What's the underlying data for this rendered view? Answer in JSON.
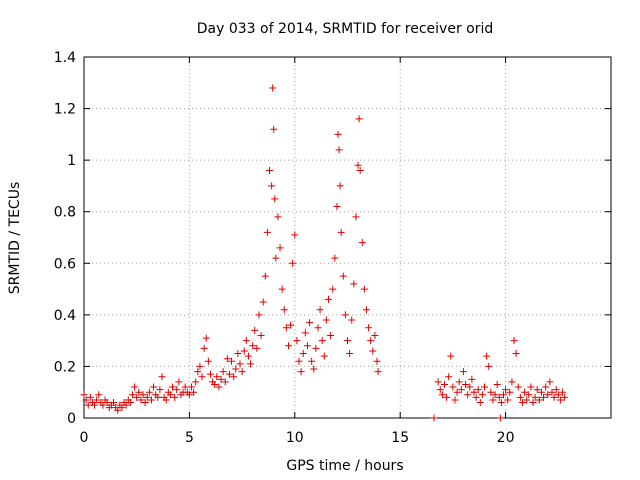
{
  "chart_data": {
    "type": "scatter",
    "title": "Day 033 of 2014, SRMTID for receiver orid",
    "xlabel": "GPS time / hours",
    "ylabel": "SRMTID / TECUs",
    "xlim": [
      0,
      25
    ],
    "ylim": [
      0,
      1.4
    ],
    "xticks": [
      "0",
      "5",
      "10",
      "15",
      "20"
    ],
    "yticks": [
      "0",
      "0.2",
      "0.4",
      "0.6",
      "0.8",
      "1",
      "1.2",
      "1.4"
    ],
    "grid": true,
    "legend": "none",
    "marker": "+",
    "color": "#e00000",
    "series": [
      {
        "name": "SRMTID",
        "points": [
          [
            0.0,
            0.09
          ],
          [
            0.1,
            0.07
          ],
          [
            0.2,
            0.05
          ],
          [
            0.3,
            0.08
          ],
          [
            0.4,
            0.06
          ],
          [
            0.5,
            0.05
          ],
          [
            0.6,
            0.07
          ],
          [
            0.7,
            0.09
          ],
          [
            0.8,
            0.06
          ],
          [
            0.9,
            0.05
          ],
          [
            1.0,
            0.07
          ],
          [
            1.1,
            0.06
          ],
          [
            1.2,
            0.04
          ],
          [
            1.3,
            0.05
          ],
          [
            1.4,
            0.06
          ],
          [
            1.5,
            0.04
          ],
          [
            1.6,
            0.03
          ],
          [
            1.7,
            0.05
          ],
          [
            1.8,
            0.04
          ],
          [
            1.9,
            0.06
          ],
          [
            2.0,
            0.05
          ],
          [
            2.1,
            0.07
          ],
          [
            2.2,
            0.06
          ],
          [
            2.3,
            0.09
          ],
          [
            2.4,
            0.12
          ],
          [
            2.5,
            0.08
          ],
          [
            2.6,
            0.1
          ],
          [
            2.7,
            0.07
          ],
          [
            2.8,
            0.09
          ],
          [
            2.9,
            0.06
          ],
          [
            3.0,
            0.08
          ],
          [
            3.1,
            0.1
          ],
          [
            3.2,
            0.07
          ],
          [
            3.3,
            0.12
          ],
          [
            3.4,
            0.09
          ],
          [
            3.5,
            0.08
          ],
          [
            3.6,
            0.11
          ],
          [
            3.7,
            0.16
          ],
          [
            3.8,
            0.08
          ],
          [
            3.9,
            0.07
          ],
          [
            4.0,
            0.1
          ],
          [
            4.1,
            0.09
          ],
          [
            4.2,
            0.12
          ],
          [
            4.3,
            0.08
          ],
          [
            4.4,
            0.11
          ],
          [
            4.5,
            0.14
          ],
          [
            4.6,
            0.09
          ],
          [
            4.7,
            0.1
          ],
          [
            4.8,
            0.12
          ],
          [
            4.9,
            0.1
          ],
          [
            5.0,
            0.09
          ],
          [
            5.1,
            0.12
          ],
          [
            5.2,
            0.1
          ],
          [
            5.3,
            0.14
          ],
          [
            5.4,
            0.18
          ],
          [
            5.5,
            0.2
          ],
          [
            5.6,
            0.16
          ],
          [
            5.7,
            0.27
          ],
          [
            5.8,
            0.31
          ],
          [
            5.9,
            0.22
          ],
          [
            6.0,
            0.17
          ],
          [
            6.1,
            0.14
          ],
          [
            6.2,
            0.13
          ],
          [
            6.3,
            0.16
          ],
          [
            6.4,
            0.12
          ],
          [
            6.5,
            0.15
          ],
          [
            6.6,
            0.18
          ],
          [
            6.7,
            0.14
          ],
          [
            6.8,
            0.23
          ],
          [
            6.9,
            0.17
          ],
          [
            7.0,
            0.22
          ],
          [
            7.1,
            0.16
          ],
          [
            7.2,
            0.19
          ],
          [
            7.3,
            0.25
          ],
          [
            7.4,
            0.21
          ],
          [
            7.5,
            0.18
          ],
          [
            7.6,
            0.26
          ],
          [
            7.7,
            0.3
          ],
          [
            7.8,
            0.24
          ],
          [
            7.9,
            0.21
          ],
          [
            8.0,
            0.28
          ],
          [
            8.1,
            0.34
          ],
          [
            8.2,
            0.27
          ],
          [
            8.3,
            0.4
          ],
          [
            8.4,
            0.32
          ],
          [
            8.5,
            0.45
          ],
          [
            8.6,
            0.55
          ],
          [
            8.7,
            0.72
          ],
          [
            8.8,
            0.96
          ],
          [
            8.9,
            0.9
          ],
          [
            8.95,
            1.28
          ],
          [
            9.0,
            1.12
          ],
          [
            9.05,
            0.85
          ],
          [
            9.1,
            0.62
          ],
          [
            9.2,
            0.78
          ],
          [
            9.3,
            0.66
          ],
          [
            9.4,
            0.5
          ],
          [
            9.5,
            0.42
          ],
          [
            9.6,
            0.35
          ],
          [
            9.7,
            0.28
          ],
          [
            9.8,
            0.36
          ],
          [
            9.9,
            0.6
          ],
          [
            10.0,
            0.71
          ],
          [
            10.1,
            0.3
          ],
          [
            10.2,
            0.22
          ],
          [
            10.3,
            0.18
          ],
          [
            10.4,
            0.25
          ],
          [
            10.5,
            0.33
          ],
          [
            10.6,
            0.28
          ],
          [
            10.7,
            0.37
          ],
          [
            10.8,
            0.22
          ],
          [
            10.9,
            0.19
          ],
          [
            11.0,
            0.27
          ],
          [
            11.1,
            0.35
          ],
          [
            11.2,
            0.42
          ],
          [
            11.3,
            0.3
          ],
          [
            11.4,
            0.24
          ],
          [
            11.5,
            0.38
          ],
          [
            11.6,
            0.46
          ],
          [
            11.7,
            0.32
          ],
          [
            11.8,
            0.5
          ],
          [
            11.9,
            0.62
          ],
          [
            12.0,
            0.82
          ],
          [
            12.05,
            1.1
          ],
          [
            12.1,
            1.04
          ],
          [
            12.15,
            0.9
          ],
          [
            12.2,
            0.72
          ],
          [
            12.3,
            0.55
          ],
          [
            12.4,
            0.4
          ],
          [
            12.5,
            0.3
          ],
          [
            12.6,
            0.25
          ],
          [
            12.7,
            0.38
          ],
          [
            12.8,
            0.52
          ],
          [
            12.9,
            0.78
          ],
          [
            13.0,
            0.98
          ],
          [
            13.05,
            1.16
          ],
          [
            13.1,
            0.96
          ],
          [
            13.2,
            0.68
          ],
          [
            13.3,
            0.5
          ],
          [
            13.4,
            0.42
          ],
          [
            13.5,
            0.35
          ],
          [
            13.6,
            0.3
          ],
          [
            13.7,
            0.26
          ],
          [
            13.8,
            0.32
          ],
          [
            13.9,
            0.22
          ],
          [
            13.95,
            0.18
          ],
          [
            16.6,
            0.0
          ],
          [
            16.8,
            0.14
          ],
          [
            16.9,
            0.11
          ],
          [
            17.0,
            0.09
          ],
          [
            17.1,
            0.13
          ],
          [
            17.2,
            0.08
          ],
          [
            17.3,
            0.16
          ],
          [
            17.4,
            0.24
          ],
          [
            17.5,
            0.12
          ],
          [
            17.6,
            0.07
          ],
          [
            17.7,
            0.1
          ],
          [
            17.8,
            0.14
          ],
          [
            17.9,
            0.11
          ],
          [
            18.0,
            0.18
          ],
          [
            18.1,
            0.13
          ],
          [
            18.2,
            0.09
          ],
          [
            18.3,
            0.12
          ],
          [
            18.4,
            0.15
          ],
          [
            18.5,
            0.1
          ],
          [
            18.6,
            0.08
          ],
          [
            18.7,
            0.11
          ],
          [
            18.8,
            0.06
          ],
          [
            18.9,
            0.09
          ],
          [
            19.0,
            0.12
          ],
          [
            19.1,
            0.24
          ],
          [
            19.2,
            0.2
          ],
          [
            19.3,
            0.1
          ],
          [
            19.4,
            0.07
          ],
          [
            19.5,
            0.09
          ],
          [
            19.6,
            0.13
          ],
          [
            19.7,
            0.08
          ],
          [
            19.75,
            0.0
          ],
          [
            19.8,
            0.06
          ],
          [
            19.9,
            0.09
          ],
          [
            20.0,
            0.11
          ],
          [
            20.1,
            0.07
          ],
          [
            20.2,
            0.1
          ],
          [
            20.3,
            0.14
          ],
          [
            20.4,
            0.3
          ],
          [
            20.5,
            0.25
          ],
          [
            20.6,
            0.12
          ],
          [
            20.7,
            0.08
          ],
          [
            20.8,
            0.06
          ],
          [
            20.9,
            0.1
          ],
          [
            21.0,
            0.07
          ],
          [
            21.1,
            0.09
          ],
          [
            21.2,
            0.12
          ],
          [
            21.3,
            0.06
          ],
          [
            21.4,
            0.08
          ],
          [
            21.5,
            0.11
          ],
          [
            21.6,
            0.07
          ],
          [
            21.7,
            0.1
          ],
          [
            21.8,
            0.08
          ],
          [
            21.9,
            0.12
          ],
          [
            22.0,
            0.09
          ],
          [
            22.1,
            0.14
          ],
          [
            22.2,
            0.1
          ],
          [
            22.3,
            0.08
          ],
          [
            22.4,
            0.11
          ],
          [
            22.5,
            0.09
          ],
          [
            22.6,
            0.07
          ],
          [
            22.7,
            0.1
          ],
          [
            22.8,
            0.08
          ]
        ]
      }
    ]
  }
}
